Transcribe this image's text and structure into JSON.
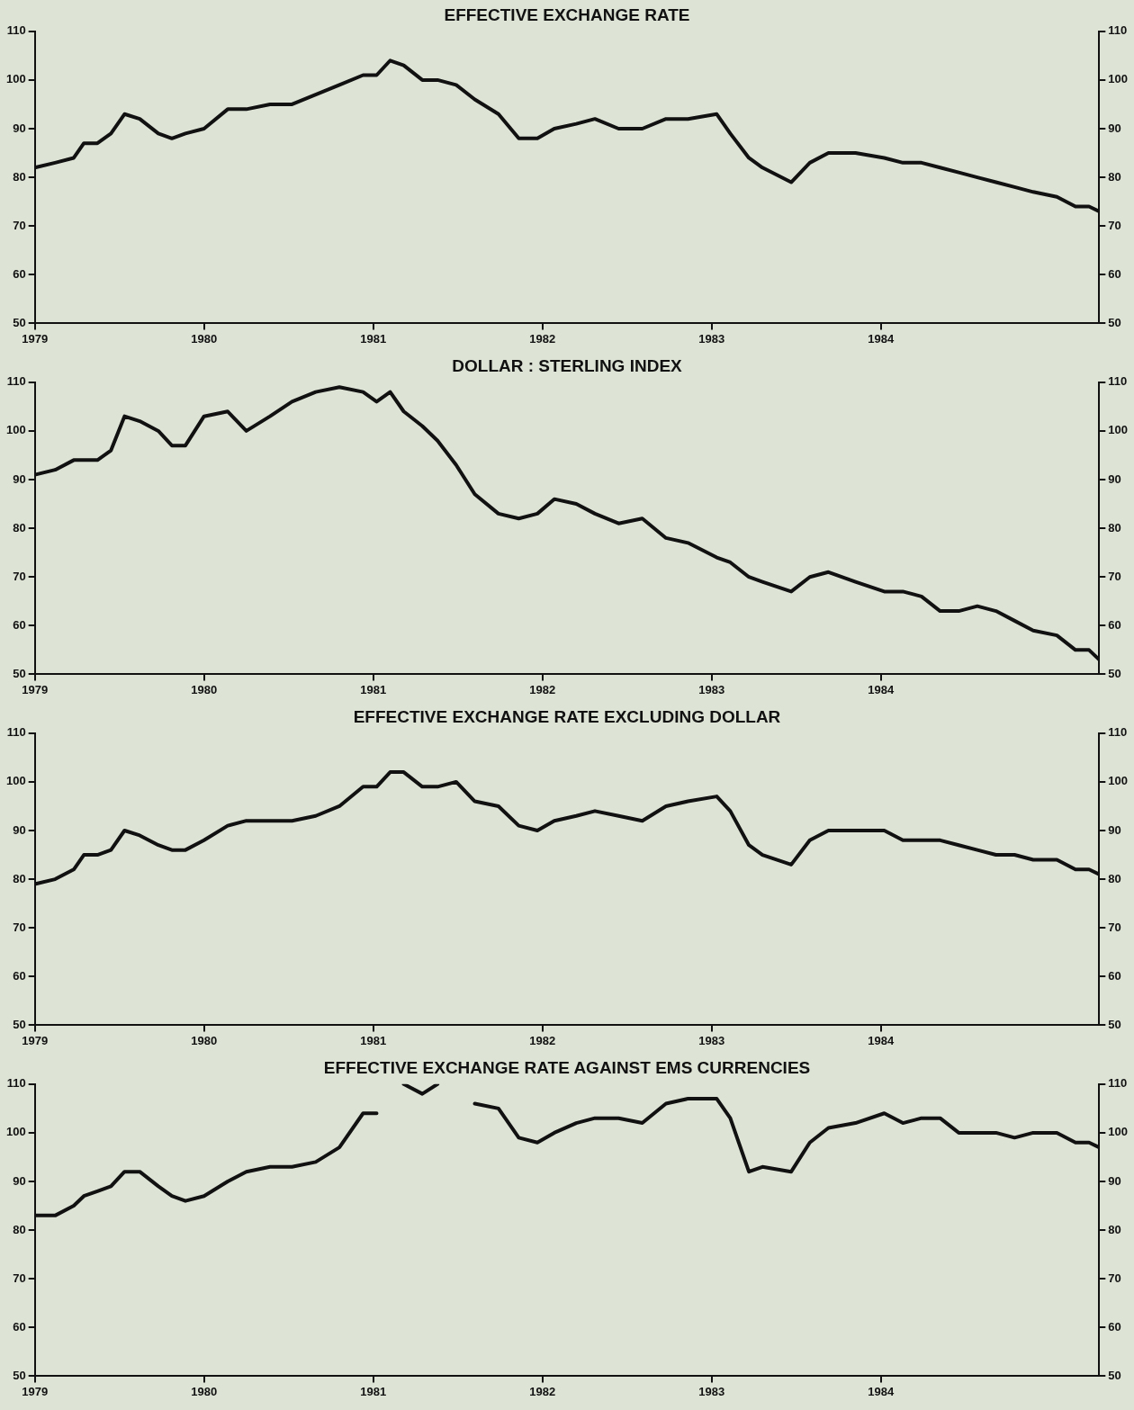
{
  "chart_data": [
    {
      "type": "line",
      "title": "EFFECTIVE EXCHANGE RATE",
      "grid": false,
      "legend": false,
      "marker": "none",
      "line_style": "solid",
      "x": [
        1979,
        1979.12,
        1979.23,
        1979.29,
        1979.37,
        1979.45,
        1979.53,
        1979.62,
        1979.73,
        1979.81,
        1979.89,
        1980,
        1980.14,
        1980.25,
        1980.39,
        1980.52,
        1980.66,
        1980.8,
        1980.94,
        1981.02,
        1981.1,
        1981.18,
        1981.29,
        1981.38,
        1981.49,
        1981.6,
        1981.74,
        1981.86,
        1981.97,
        1982.07,
        1982.2,
        1982.31,
        1982.45,
        1982.59,
        1982.73,
        1982.86,
        1983.03,
        1983.11,
        1983.22,
        1983.3,
        1983.47,
        1983.58,
        1983.69,
        1983.85,
        1984.02,
        1984.13,
        1984.24,
        1984.35,
        1984.46,
        1984.57,
        1984.68,
        1984.79,
        1984.9,
        1985.04,
        1985.15,
        1985.23,
        1985.29
      ],
      "series": [
        {
          "color": "#111111",
          "values": [
            82,
            83,
            84,
            87,
            87,
            89,
            93,
            92,
            89,
            88,
            89,
            90,
            94,
            94,
            95,
            95,
            97,
            99,
            101,
            101,
            104,
            103,
            100,
            100,
            99,
            96,
            93,
            88,
            88,
            90,
            91,
            92,
            90,
            90,
            92,
            92,
            93,
            89,
            84,
            82,
            79,
            83,
            85,
            85,
            84,
            83,
            83,
            82,
            81,
            80,
            79,
            78,
            77,
            76,
            74,
            74,
            73
          ]
        }
      ],
      "xlim": [
        1979,
        1985.29
      ],
      "xticks": [
        1979,
        1980,
        1981,
        1982,
        1983,
        1984
      ],
      "ylim": [
        50,
        110
      ],
      "yticks": [
        50,
        60,
        70,
        80,
        90,
        100,
        110
      ],
      "y2lim": [
        50,
        110
      ],
      "y2ticks": [
        50,
        60,
        70,
        80,
        90,
        100,
        110
      ]
    },
    {
      "type": "line",
      "title": "DOLLAR : STERLING INDEX",
      "grid": false,
      "legend": false,
      "marker": "none",
      "line_style": "solid",
      "x": [
        1979,
        1979.12,
        1979.23,
        1979.29,
        1979.37,
        1979.45,
        1979.53,
        1979.62,
        1979.73,
        1979.81,
        1979.89,
        1980,
        1980.14,
        1980.25,
        1980.39,
        1980.52,
        1980.66,
        1980.8,
        1980.94,
        1981.02,
        1981.1,
        1981.18,
        1981.29,
        1981.38,
        1981.49,
        1981.6,
        1981.74,
        1981.86,
        1981.97,
        1982.07,
        1982.2,
        1982.31,
        1982.45,
        1982.59,
        1982.73,
        1982.86,
        1983.03,
        1983.11,
        1983.22,
        1983.3,
        1983.47,
        1983.58,
        1983.69,
        1983.85,
        1984.02,
        1984.13,
        1984.24,
        1984.35,
        1984.46,
        1984.57,
        1984.68,
        1984.79,
        1984.9,
        1985.04,
        1985.15,
        1985.23,
        1985.29
      ],
      "series": [
        {
          "color": "#111111",
          "values": [
            91,
            92,
            94,
            94,
            94,
            96,
            103,
            102,
            100,
            97,
            97,
            103,
            104,
            100,
            103,
            106,
            108,
            109,
            108,
            106,
            108,
            104,
            101,
            98,
            93,
            87,
            83,
            82,
            83,
            86,
            85,
            83,
            81,
            82,
            78,
            77,
            74,
            73,
            70,
            69,
            67,
            70,
            71,
            69,
            67,
            67,
            66,
            63,
            63,
            64,
            63,
            61,
            59,
            58,
            55,
            55,
            53
          ]
        }
      ],
      "xlim": [
        1979,
        1985.29
      ],
      "xticks": [
        1979,
        1980,
        1981,
        1982,
        1983,
        1984
      ],
      "ylim": [
        50,
        110
      ],
      "yticks": [
        50,
        60,
        70,
        80,
        90,
        100,
        110
      ],
      "y2lim": [
        50,
        110
      ],
      "y2ticks": [
        50,
        60,
        70,
        80,
        90,
        100,
        110
      ]
    },
    {
      "type": "line",
      "title": "EFFECTIVE EXCHANGE RATE EXCLUDING DOLLAR",
      "grid": false,
      "legend": false,
      "marker": "none",
      "line_style": "solid",
      "x": [
        1979,
        1979.12,
        1979.23,
        1979.29,
        1979.37,
        1979.45,
        1979.53,
        1979.62,
        1979.73,
        1979.81,
        1979.89,
        1980,
        1980.14,
        1980.25,
        1980.39,
        1980.52,
        1980.66,
        1980.8,
        1980.94,
        1981.02,
        1981.1,
        1981.18,
        1981.29,
        1981.38,
        1981.49,
        1981.6,
        1981.74,
        1981.86,
        1981.97,
        1982.07,
        1982.2,
        1982.31,
        1982.45,
        1982.59,
        1982.73,
        1982.86,
        1983.03,
        1983.11,
        1983.22,
        1983.3,
        1983.47,
        1983.58,
        1983.69,
        1983.85,
        1984.02,
        1984.13,
        1984.24,
        1984.35,
        1984.46,
        1984.57,
        1984.68,
        1984.79,
        1984.9,
        1985.04,
        1985.15,
        1985.23,
        1985.29
      ],
      "series": [
        {
          "color": "#111111",
          "values": [
            79,
            80,
            82,
            85,
            85,
            86,
            90,
            89,
            87,
            86,
            86,
            88,
            91,
            92,
            92,
            92,
            93,
            95,
            99,
            99,
            102,
            102,
            99,
            99,
            100,
            96,
            95,
            91,
            90,
            92,
            93,
            94,
            93,
            92,
            95,
            96,
            97,
            94,
            87,
            85,
            83,
            88,
            90,
            90,
            90,
            88,
            88,
            88,
            87,
            86,
            85,
            85,
            84,
            84,
            82,
            82,
            81
          ]
        }
      ],
      "xlim": [
        1979,
        1985.29
      ],
      "xticks": [
        1979,
        1980,
        1981,
        1982,
        1983,
        1984
      ],
      "ylim": [
        50,
        110
      ],
      "yticks": [
        50,
        60,
        70,
        80,
        90,
        100,
        110
      ],
      "y2lim": [
        50,
        110
      ],
      "y2ticks": [
        50,
        60,
        70,
        80,
        90,
        100,
        110
      ]
    },
    {
      "type": "line",
      "title": "EFFECTIVE EXCHANGE RATE AGAINST EMS CURRENCIES",
      "grid": false,
      "legend": false,
      "marker": "none",
      "line_style": "solid",
      "x": [
        1979,
        1979.12,
        1979.23,
        1979.29,
        1979.37,
        1979.45,
        1979.53,
        1979.62,
        1979.73,
        1979.81,
        1979.89,
        1980,
        1980.14,
        1980.25,
        1980.39,
        1980.52,
        1980.66,
        1980.8,
        1980.94,
        1981.02,
        1981.1,
        1981.18,
        1981.29,
        1981.38,
        1981.49,
        1981.6,
        1981.74,
        1981.86,
        1981.97,
        1982.07,
        1982.2,
        1982.31,
        1982.45,
        1982.59,
        1982.73,
        1982.86,
        1983.03,
        1983.11,
        1983.22,
        1983.3,
        1983.47,
        1983.58,
        1983.69,
        1983.85,
        1984.02,
        1984.13,
        1984.24,
        1984.35,
        1984.46,
        1984.57,
        1984.68,
        1984.79,
        1984.9,
        1985.04,
        1985.15,
        1985.23,
        1985.29
      ],
      "series": [
        {
          "color": "#111111",
          "values": [
            83,
            83,
            85,
            87,
            88,
            89,
            92,
            92,
            89,
            87,
            86,
            87,
            90,
            92,
            93,
            93,
            94,
            97,
            104,
            104,
            null,
            110,
            108,
            110,
            null,
            106,
            105,
            99,
            98,
            100,
            102,
            103,
            103,
            102,
            106,
            107,
            107,
            103,
            92,
            93,
            92,
            98,
            101,
            102,
            104,
            102,
            103,
            103,
            100,
            100,
            100,
            99,
            100,
            100,
            98,
            98,
            97
          ]
        }
      ],
      "xlim": [
        1979,
        1985.29
      ],
      "xticks": [
        1979,
        1980,
        1981,
        1982,
        1983,
        1984
      ],
      "ylim": [
        50,
        110
      ],
      "yticks": [
        50,
        60,
        70,
        80,
        90,
        100,
        110
      ],
      "y2lim": [
        50,
        110
      ],
      "y2ticks": [
        50,
        60,
        70,
        80,
        90,
        100,
        110
      ]
    }
  ]
}
